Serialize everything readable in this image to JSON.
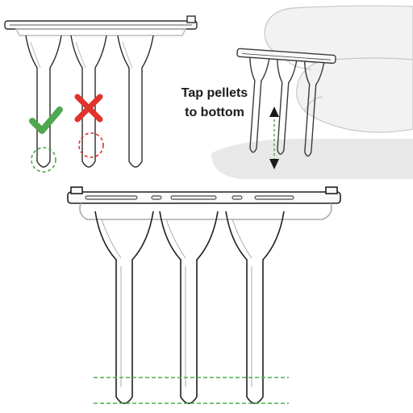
{
  "instruction": {
    "line1": "Tap pellets",
    "line2": "to bottom"
  },
  "panels": {
    "comparison": {
      "correct": "check-mark",
      "incorrect": "x-mark",
      "tube_count": 3
    },
    "tapping": {
      "direction": "up-down",
      "tube_count": 3
    },
    "result": {
      "tube_count": 3,
      "reference_lines": 2
    }
  },
  "colors": {
    "outline": "#2b2b2b",
    "check": "#4fa84f",
    "cross": "#e0332c",
    "guide_green": "#4cad4c",
    "shadow": "#e6e6e6"
  }
}
